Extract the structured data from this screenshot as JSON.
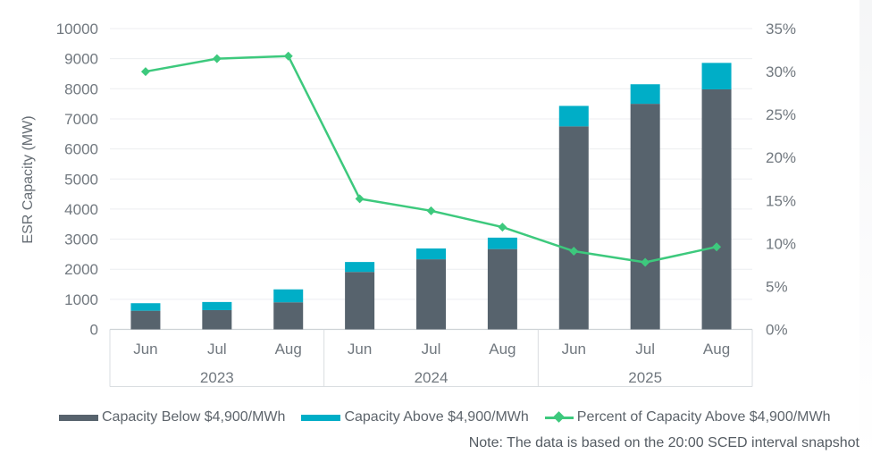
{
  "note": "Note: The data is based on the 20:00 SCED interval snapshot",
  "chart_data": {
    "type": "bar",
    "subtype": "stacked-bars-with-line",
    "title": "",
    "y_left": {
      "label": "ESR Capacity (MW)",
      "min": 0,
      "max": 10000,
      "tick_step": 1000,
      "ticks": [
        "0",
        "1000",
        "2000",
        "3000",
        "4000",
        "5000",
        "6000",
        "7000",
        "8000",
        "9000",
        "10000"
      ]
    },
    "y_right": {
      "label": "",
      "min": 0,
      "max": 35,
      "tick_step": 5,
      "ticks": [
        "0%",
        "5%",
        "10%",
        "15%",
        "20%",
        "25%",
        "30%",
        "35%"
      ]
    },
    "groups": [
      {
        "year": "2023",
        "months": [
          "Jun",
          "Jul",
          "Aug"
        ]
      },
      {
        "year": "2024",
        "months": [
          "Jun",
          "Jul",
          "Aug"
        ]
      },
      {
        "year": "2025",
        "months": [
          "Jun",
          "Jul",
          "Aug"
        ]
      }
    ],
    "series": [
      {
        "name": "Capacity Below $4,900/MWh",
        "type": "bar",
        "axis": "left",
        "color": "#57636D",
        "values": [
          620,
          640,
          900,
          1910,
          2330,
          2670,
          6750,
          7500,
          7980
        ]
      },
      {
        "name": "Capacity Above $4,900/MWh",
        "type": "bar",
        "axis": "left",
        "color": "#00AEC7",
        "values": [
          250,
          270,
          430,
          330,
          360,
          380,
          680,
          650,
          880
        ]
      },
      {
        "name": "Percent of Capacity Above $4,900/MWh",
        "type": "line",
        "axis": "right",
        "color": "#3DC97D",
        "values": [
          30,
          31.5,
          31.8,
          15.2,
          13.8,
          11.9,
          9.1,
          7.8,
          9.6
        ]
      }
    ],
    "legend_position": "bottom",
    "grid": true,
    "colors": {
      "grid": "#ECEEF0",
      "band_border": "#D9DDE0",
      "axis_line": "#CDD2D5",
      "text": "#71787F"
    }
  }
}
